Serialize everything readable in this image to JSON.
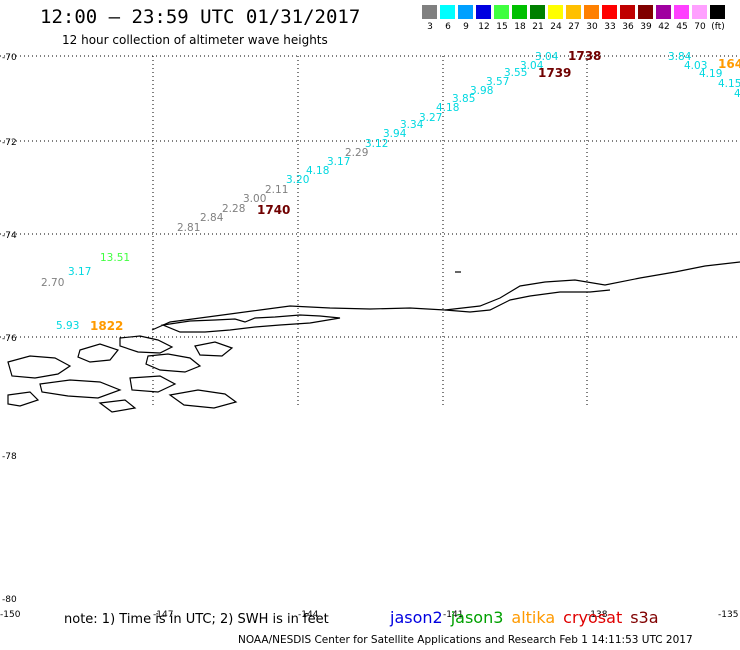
{
  "header": {
    "title": "12:00 – 23:59 UTC 01/31/2017",
    "subtitle": "12 hour collection of altimeter wave heights"
  },
  "legend": {
    "unit": "(ft)",
    "bins": [
      {
        "label": "3",
        "color": "#808080"
      },
      {
        "label": "6",
        "color": "#00ffff"
      },
      {
        "label": "9",
        "color": "#00a0ff"
      },
      {
        "label": "12",
        "color": "#0000e0"
      },
      {
        "label": "15",
        "color": "#40ff40"
      },
      {
        "label": "18",
        "color": "#00c000"
      },
      {
        "label": "21",
        "color": "#008000"
      },
      {
        "label": "24",
        "color": "#ffff00"
      },
      {
        "label": "27",
        "color": "#ffc000"
      },
      {
        "label": "30",
        "color": "#ff8000"
      },
      {
        "label": "33",
        "color": "#ff0000"
      },
      {
        "label": "36",
        "color": "#c00000"
      },
      {
        "label": "39",
        "color": "#800000"
      },
      {
        "label": "42",
        "color": "#a000a0"
      },
      {
        "label": "45",
        "color": "#ff40ff"
      },
      {
        "label": "70",
        "color": "#ffa0ff"
      },
      {
        "label": "",
        "color": "#000000"
      }
    ]
  },
  "axes": {
    "lat_labels": [
      "-70",
      "-72",
      "-74",
      "-76",
      "-78",
      "-80"
    ],
    "lon_labels": [
      "-150",
      "-147",
      "-144",
      "-141",
      "-138",
      "-135"
    ]
  },
  "readings": [
    {
      "text": "3.04",
      "color": "#00d8e0"
    },
    {
      "text": "1738",
      "color": "#700000",
      "bold": true
    },
    {
      "text": "3.04",
      "color": "#00d8e0"
    },
    {
      "text": "1739",
      "color": "#700000",
      "bold": true
    },
    {
      "text": "3.55",
      "color": "#00d8e0"
    },
    {
      "text": "3.57",
      "color": "#00d8e0"
    },
    {
      "text": "3.98",
      "color": "#00d8e0"
    },
    {
      "text": "3.85",
      "color": "#00d8e0"
    },
    {
      "text": "4.18",
      "color": "#00d8e0"
    },
    {
      "text": "3.27",
      "color": "#00d8e0"
    },
    {
      "text": "3.34",
      "color": "#00d8e0"
    },
    {
      "text": "3.94",
      "color": "#00d8e0"
    },
    {
      "text": "3.12",
      "color": "#00d8e0"
    },
    {
      "text": "2.29",
      "color": "#808080"
    },
    {
      "text": "3.17",
      "color": "#00d8e0"
    },
    {
      "text": "4.18",
      "color": "#00d8e0"
    },
    {
      "text": "3.20",
      "color": "#00d8e0"
    },
    {
      "text": "2.11",
      "color": "#808080"
    },
    {
      "text": "3.00",
      "color": "#808080"
    },
    {
      "text": "1740",
      "color": "#700000",
      "bold": true
    },
    {
      "text": "2.28",
      "color": "#808080"
    },
    {
      "text": "2.84",
      "color": "#808080"
    },
    {
      "text": "2.81",
      "color": "#808080"
    },
    {
      "text": "13.51",
      "color": "#40ff40"
    },
    {
      "text": "3.17",
      "color": "#00d8e0"
    },
    {
      "text": "2.70",
      "color": "#808080"
    },
    {
      "text": "5.93",
      "color": "#00d8e0"
    },
    {
      "text": "1822",
      "color": "#ff9a00",
      "bold": true
    },
    {
      "text": "3.84",
      "color": "#00d8e0"
    },
    {
      "text": "4.03",
      "color": "#00d8e0"
    },
    {
      "text": "164",
      "color": "#ff9a00",
      "bold": true
    },
    {
      "text": "4.19",
      "color": "#00d8e0"
    },
    {
      "text": "4.15",
      "color": "#00d8e0"
    },
    {
      "text": "4",
      "color": "#00d8e0"
    }
  ],
  "note": "note:  1) Time is in UTC;  2) SWH is in feet",
  "satellites": [
    {
      "name": "jason2",
      "color": "#0000e0"
    },
    {
      "name": "jason3",
      "color": "#00a000"
    },
    {
      "name": "altika",
      "color": "#ff9a00"
    },
    {
      "name": "cryosat",
      "color": "#e00000"
    },
    {
      "name": "s3a",
      "color": "#800000"
    }
  ],
  "footer": "NOAA/NESDIS Center for Satellite Applications and Research    Feb  1 14:11:53 UTC 2017"
}
